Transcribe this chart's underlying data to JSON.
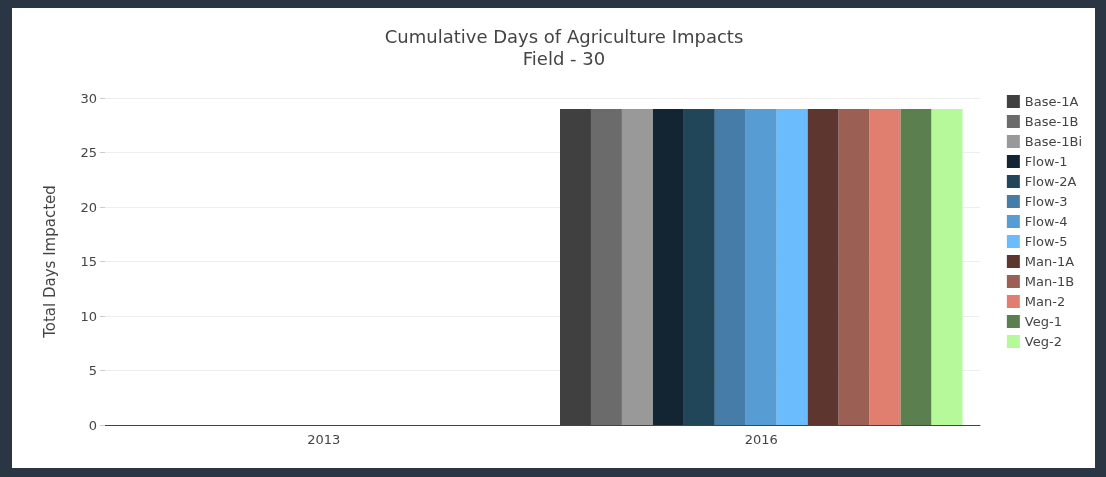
{
  "chart_data": {
    "type": "bar",
    "title": "Cumulative Days of Agriculture Impacts",
    "subtitle": "Field - 30",
    "ylabel": "Total Days Impacted",
    "categories": [
      "2013",
      "2016"
    ],
    "series": [
      {
        "name": "Base-1A",
        "color": "#404040",
        "values": [
          0,
          29
        ]
      },
      {
        "name": "Base-1B",
        "color": "#6b6b6b",
        "values": [
          0,
          29
        ]
      },
      {
        "name": "Base-1Bi",
        "color": "#999999",
        "values": [
          0,
          29
        ]
      },
      {
        "name": "Flow-1",
        "color": "#132533",
        "values": [
          0,
          29
        ]
      },
      {
        "name": "Flow-2A",
        "color": "#214559",
        "values": [
          0,
          29
        ]
      },
      {
        "name": "Flow-3",
        "color": "#467da8",
        "values": [
          0,
          29
        ]
      },
      {
        "name": "Flow-4",
        "color": "#579dd4",
        "values": [
          0,
          29
        ]
      },
      {
        "name": "Flow-5",
        "color": "#6bbcfd",
        "values": [
          0,
          29
        ]
      },
      {
        "name": "Man-1A",
        "color": "#5e3630",
        "values": [
          0,
          29
        ]
      },
      {
        "name": "Man-1B",
        "color": "#9c5f53",
        "values": [
          0,
          29
        ]
      },
      {
        "name": "Man-2",
        "color": "#e07f6f",
        "values": [
          0,
          29
        ]
      },
      {
        "name": "Veg-1",
        "color": "#5b7f4f",
        "values": [
          0,
          29
        ]
      },
      {
        "name": "Veg-2",
        "color": "#b5f99b",
        "values": [
          0,
          29
        ]
      }
    ],
    "ylim": [
      0,
      30
    ],
    "yticks": [
      0,
      5,
      10,
      15,
      20,
      25,
      30
    ],
    "grid": "y",
    "legend": "right"
  }
}
